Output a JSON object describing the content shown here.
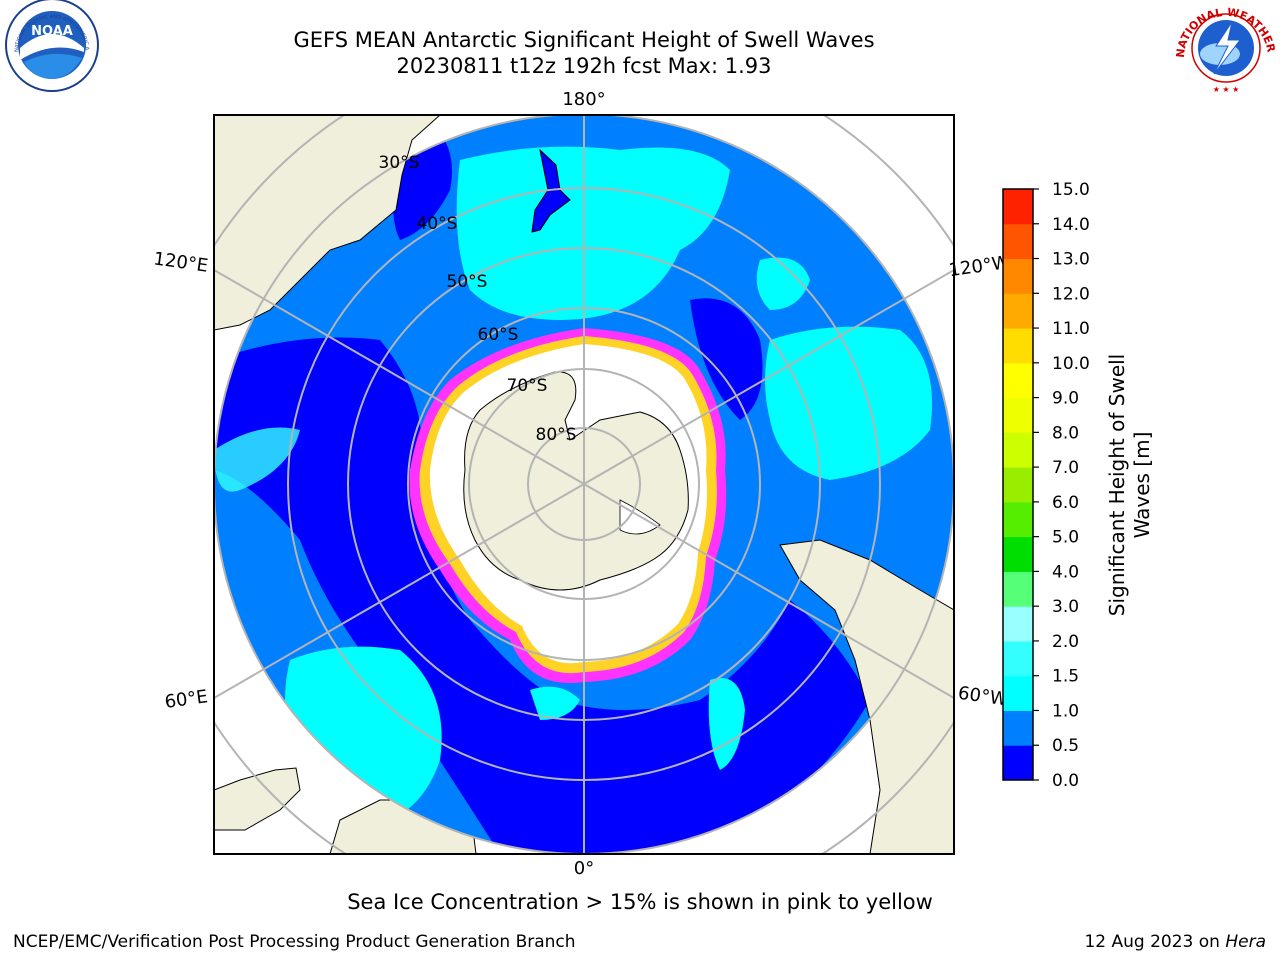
{
  "header": {
    "title_line1": "GEFS MEAN Antarctic Significant Height of Swell Waves",
    "title_line2": "20230811 t12z 192h fcst   Max: 1.93"
  },
  "logos": {
    "left": "NOAA",
    "left_ring": "NATIONAL OCEANIC AND ATMOSPHERIC ADMINISTRATION · U.S. DEPARTMENT OF COMMERCE",
    "right_ring": "NATIONAL WEATHER SERVICE"
  },
  "map": {
    "projection": "south-polar-stereographic",
    "longitude_labels": {
      "top": "180°",
      "bottom": "0°",
      "upper_left": "120°E",
      "lower_left": "60°E",
      "upper_right": "120°W",
      "lower_right": "60°W"
    },
    "latitude_labels": [
      "30°S",
      "40°S",
      "50°S",
      "60°S",
      "70°S",
      "80°S"
    ],
    "colors": {
      "ocean_deep": "#0000ff",
      "ocean_mid": "#0080ff",
      "ocean_light": "#00ffff",
      "ocean_pale": "#33ffff",
      "land": "#efefdc",
      "ice": "#ffffff",
      "ice_edge": "#ff33ff",
      "graticule": "#b4b4b4"
    }
  },
  "colorbar": {
    "label": "Significant Height of Swell Waves [m]",
    "label_line1": "Significant Height of Swell",
    "label_line2": "Waves [m]",
    "ticks": [
      "0.0",
      "0.5",
      "1.0",
      "1.5",
      "2.0",
      "3.0",
      "4.0",
      "5.0",
      "6.0",
      "7.0",
      "8.0",
      "9.0",
      "10.0",
      "11.0",
      "12.0",
      "13.0",
      "14.0",
      "15.0"
    ],
    "colors": [
      "#0000ff",
      "#0080ff",
      "#00ffff",
      "#33ffff",
      "#99ffff",
      "#55ff77",
      "#00dd00",
      "#55ee00",
      "#99ee00",
      "#ccff00",
      "#eeff00",
      "#ffff00",
      "#ffdd00",
      "#ffaa00",
      "#ff8800",
      "#ff5500",
      "#ff2200"
    ]
  },
  "notes": {
    "sea_ice": "Sea Ice Concentration > 15% is shown in pink to yellow"
  },
  "footer": {
    "left": "NCEP/EMC/Verification Post Processing Product Generation Branch",
    "right_prefix": "12 Aug 2023 on",
    "right_machine": "Hera"
  }
}
